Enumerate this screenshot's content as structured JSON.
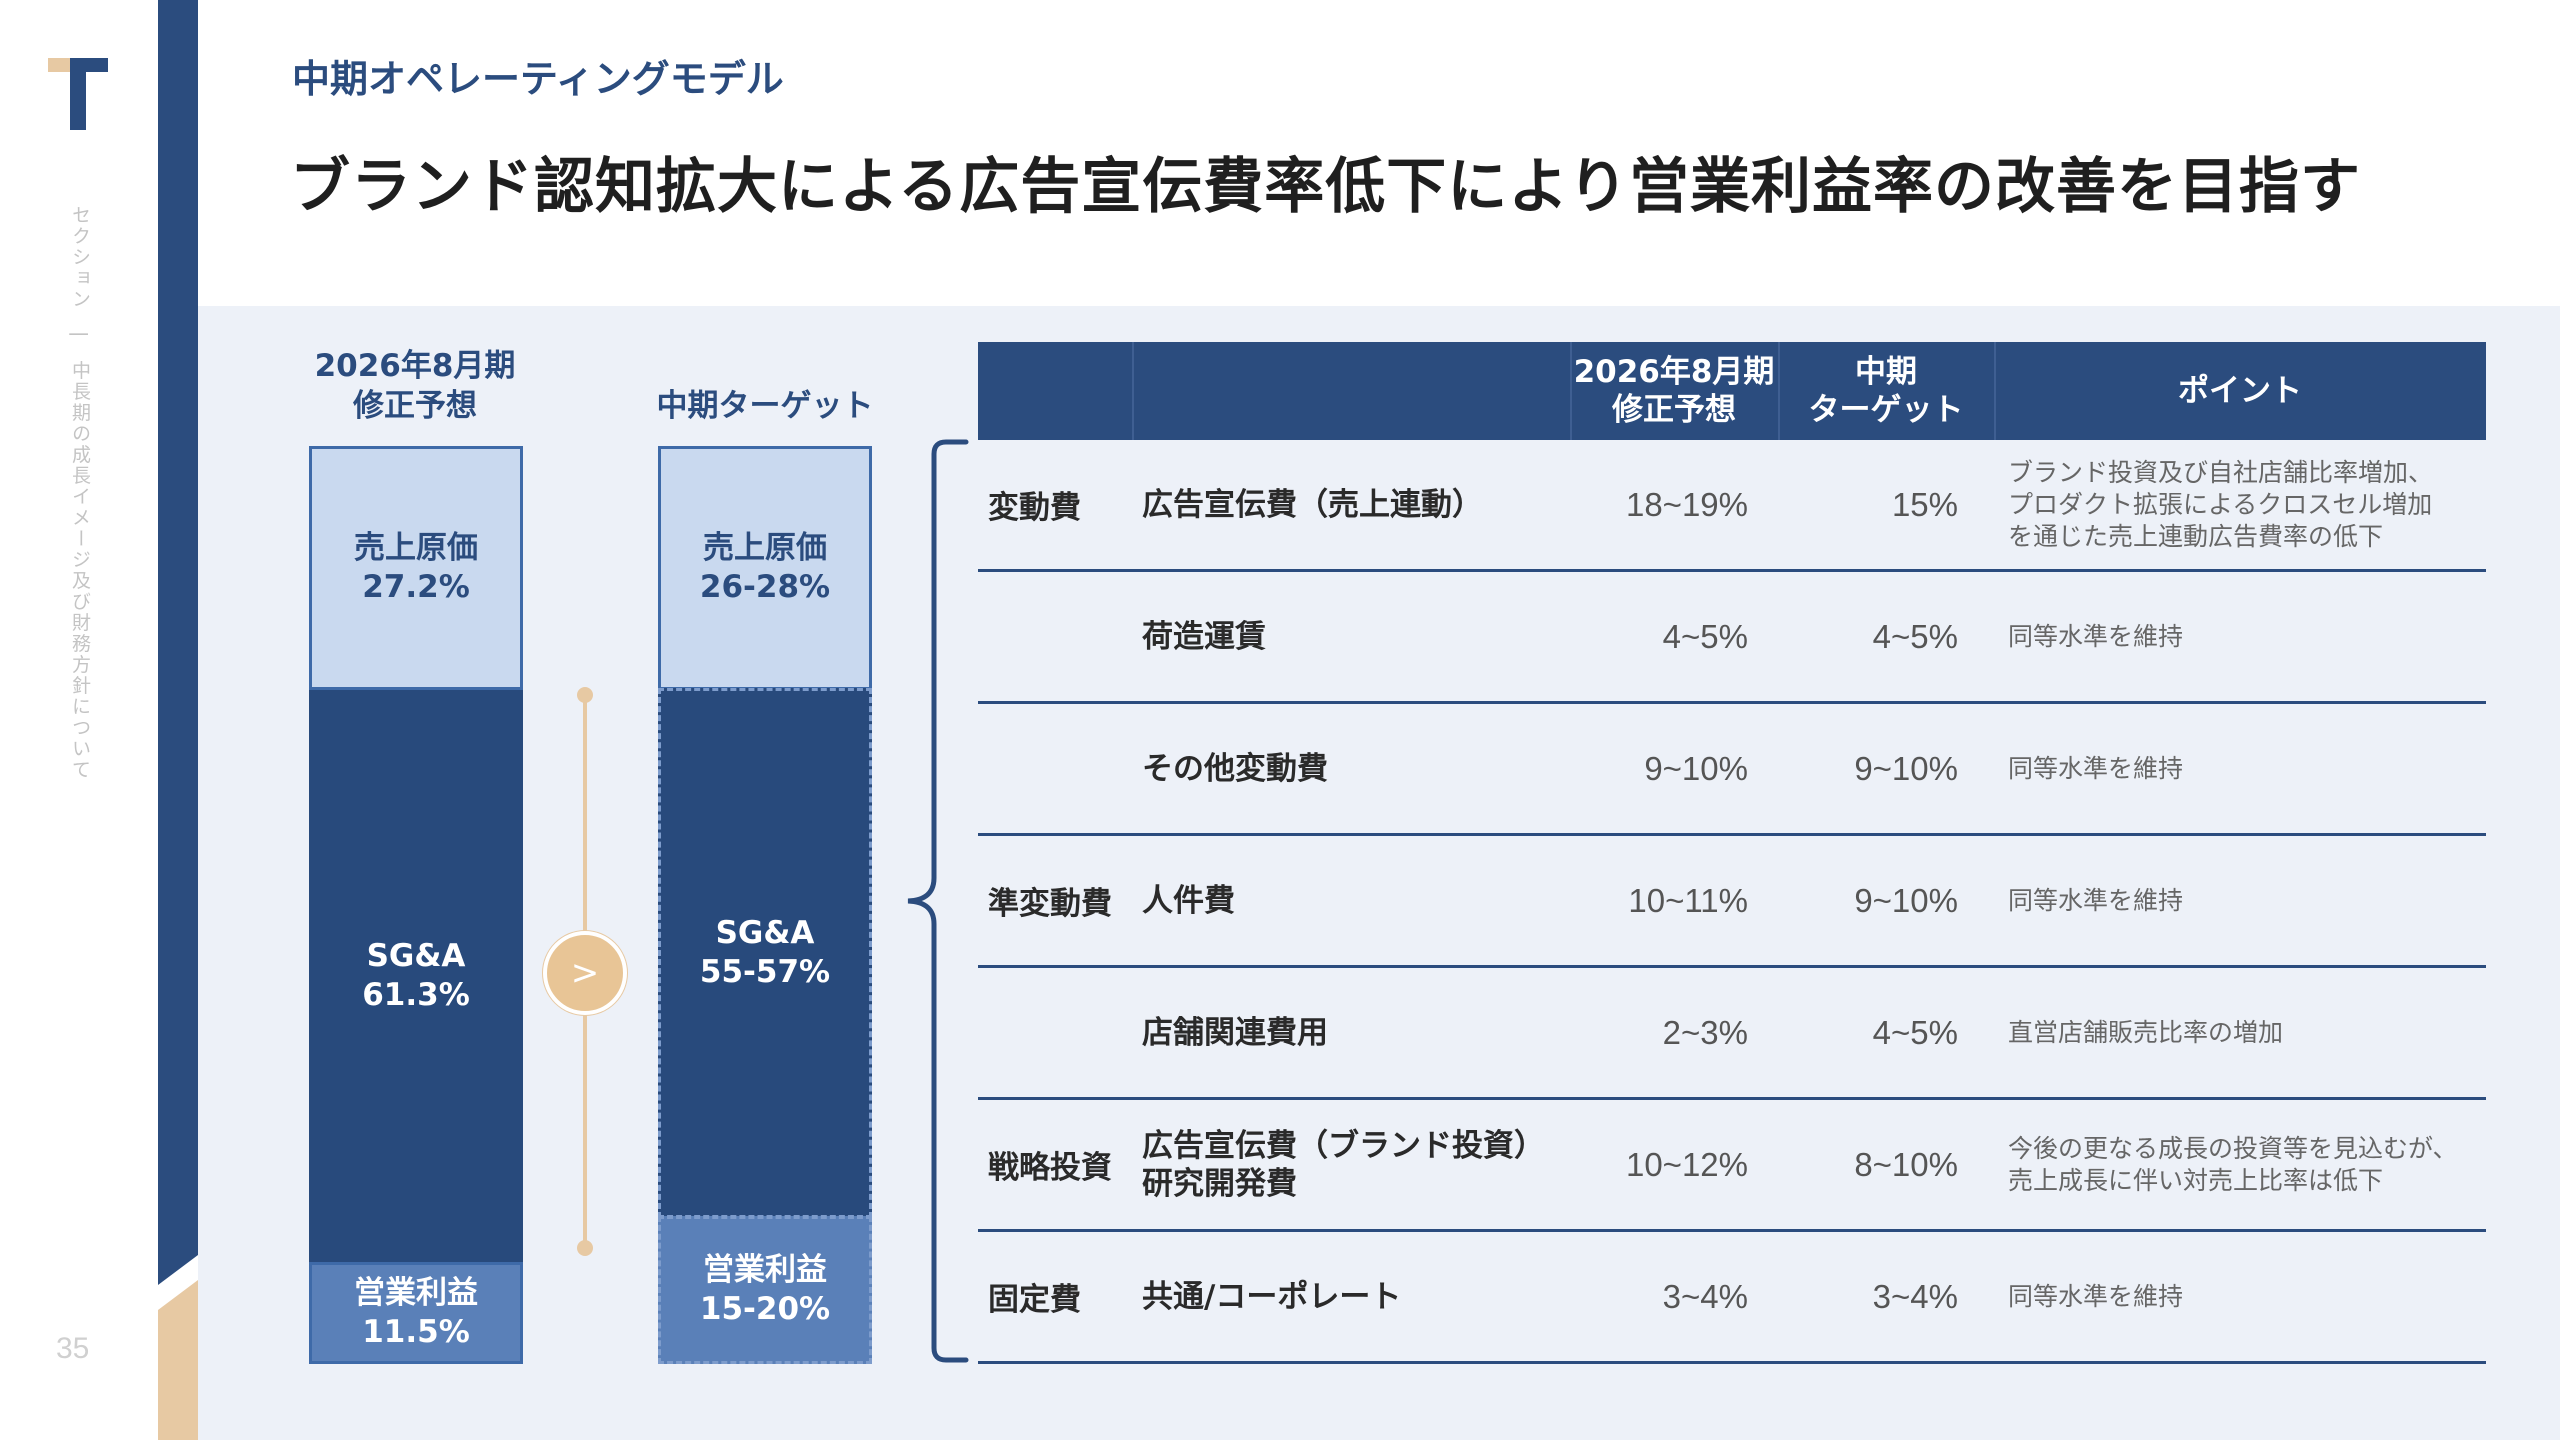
{
  "page": {
    "section_label": "セクション　|　中長期の成長イメージ及び財務方針について",
    "page_number": "35",
    "subtitle": "中期オペレーティングモデル",
    "title": "ブランド認知拡大による広告宣伝費率低下により営業利益率の改善を目指す"
  },
  "colors": {
    "navy": "#2b4c7e",
    "tan": "#e7c9a3",
    "light_blue": "#c9d9ef",
    "mid_blue": "#5a80b8",
    "panel": "#edf1f8"
  },
  "stacks": {
    "current": {
      "header": [
        "2026年8月期",
        "修正予想"
      ],
      "cogs": {
        "label": "売上原価",
        "value": "27.2%"
      },
      "sga": {
        "label": "SG&A",
        "value": "61.3%"
      },
      "op": {
        "label": "営業利益",
        "value": "11.5%"
      }
    },
    "target": {
      "header": [
        "中期ターゲット"
      ],
      "cogs": {
        "label": "売上原価",
        "value": "26-28%"
      },
      "sga": {
        "label": "SG&A",
        "value": "55-57%"
      },
      "op": {
        "label": "営業利益",
        "value": "15-20%"
      }
    },
    "arrow_glyph": ">"
  },
  "table": {
    "headers": {
      "current": [
        "2026年8月期",
        "修正予想"
      ],
      "target": [
        "中期",
        "ターゲット"
      ],
      "point": "ポイント"
    },
    "rows": [
      {
        "category": "変動費",
        "item": [
          "広告宣伝費（売上連動）"
        ],
        "current": "18~19%",
        "target": "15%",
        "point": [
          "ブランド投資及び自社店舗比率増加、",
          "プロダクト拡張によるクロスセル増加",
          "を通じた売上連動広告費率の低下"
        ]
      },
      {
        "category": "",
        "item": [
          "荷造運賃"
        ],
        "current": "4~5%",
        "target": "4~5%",
        "point": [
          "同等水準を維持"
        ]
      },
      {
        "category": "",
        "item": [
          "その他変動費"
        ],
        "current": "9~10%",
        "target": "9~10%",
        "point": [
          "同等水準を維持"
        ]
      },
      {
        "category": "準変動費",
        "item": [
          "人件費"
        ],
        "current": "10~11%",
        "target": "9~10%",
        "point": [
          "同等水準を維持"
        ]
      },
      {
        "category": "",
        "item": [
          "店舗関連費用"
        ],
        "current": "2~3%",
        "target": "4~5%",
        "point": [
          "直営店舗販売比率の増加"
        ]
      },
      {
        "category": "戦略投資",
        "item": [
          "広告宣伝費（ブランド投資）",
          "研究開発費"
        ],
        "current": "10~12%",
        "target": "8~10%",
        "point": [
          "今後の更なる成長の投資等を見込むが、",
          "売上成長に伴い対売上比率は低下"
        ]
      },
      {
        "category": "固定費",
        "item": [
          "共通/コーポレート"
        ],
        "current": "3~4%",
        "target": "3~4%",
        "point": [
          "同等水準を維持"
        ]
      }
    ]
  }
}
